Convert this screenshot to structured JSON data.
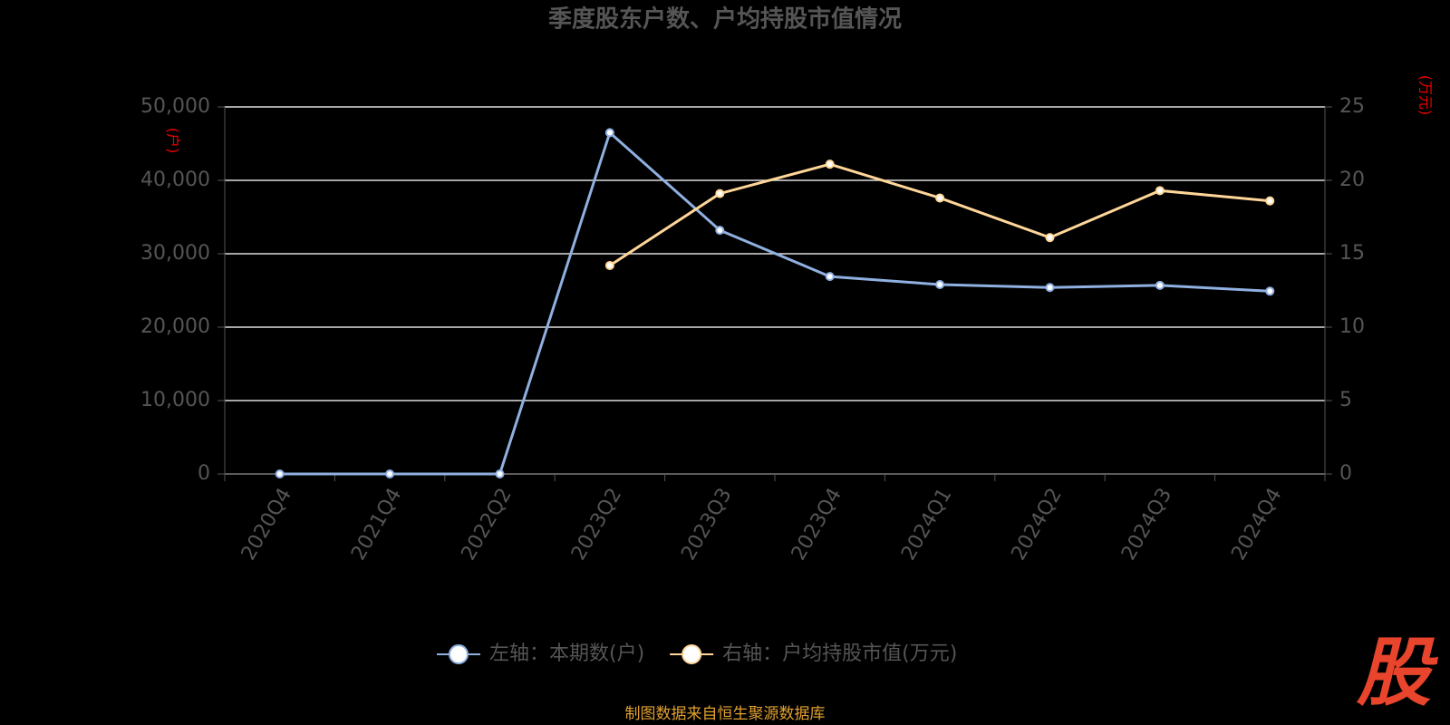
{
  "chart_data": {
    "type": "line",
    "title": "季度股东户数、户均持股市值情况",
    "y_label": "(户)",
    "y2_label": "(万元)",
    "categories": [
      "2020Q4",
      "2021Q4",
      "2022Q2",
      "2023Q2",
      "2023Q3",
      "2023Q4",
      "2024Q1",
      "2024Q2",
      "2024Q3",
      "2024Q4"
    ],
    "series": [
      {
        "name": "左轴：本期数(户)",
        "color": "#8fb0e0",
        "axis": "y",
        "values": [
          0,
          0,
          0,
          46500,
          33200,
          26900,
          25800,
          25400,
          25700,
          24900
        ]
      },
      {
        "name": "右轴：户均持股市值(万元)",
        "color": "#ffd699",
        "axis": "y2",
        "values": [
          null,
          null,
          null,
          14.2,
          19.1,
          21.1,
          18.8,
          16.1,
          19.3,
          18.6
        ]
      }
    ],
    "ylim": [
      0,
      50000
    ],
    "yticks": [
      {
        "value": 0,
        "label": "0"
      },
      {
        "value": 10000,
        "label": "10,000"
      },
      {
        "value": 20000,
        "label": "20,000"
      },
      {
        "value": 30000,
        "label": "30,000"
      },
      {
        "value": 40000,
        "label": "40,000"
      },
      {
        "value": 50000,
        "label": "50,000"
      }
    ],
    "y2lim": [
      0,
      25
    ],
    "y2ticks": [
      0,
      5,
      10,
      15,
      20,
      25
    ],
    "grid": true,
    "legend": "bottom",
    "source": "制图数据来自恒生聚源数据库",
    "watermark": "股"
  }
}
